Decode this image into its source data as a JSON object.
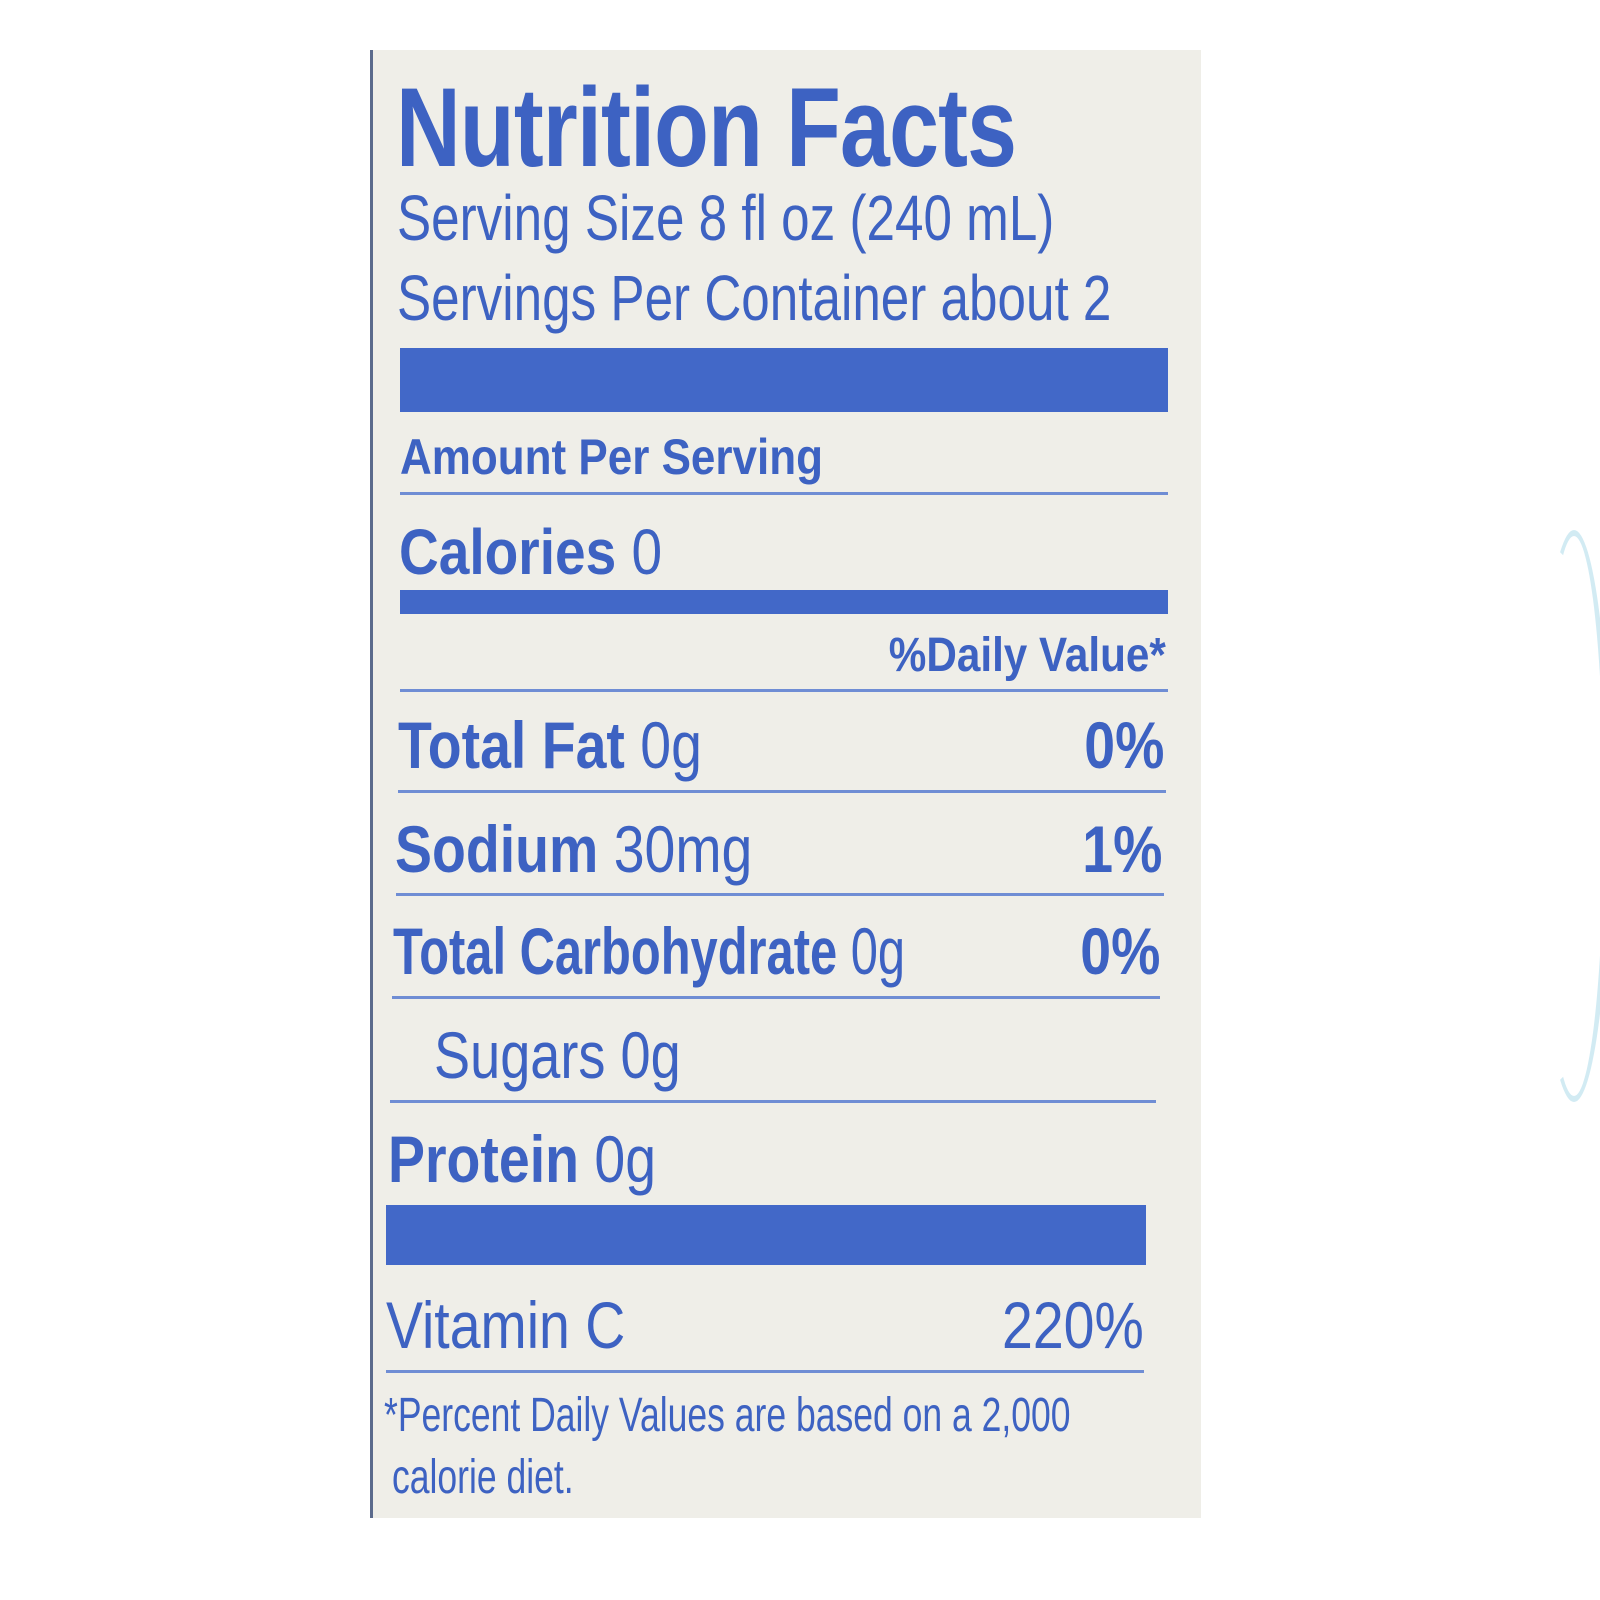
{
  "label": {
    "title": "Nutrition Facts",
    "serving_size": "Serving Size 8 fl oz (240 mL)",
    "servings_per_container": "Servings Per Container about 2",
    "amount_per_serving": "Amount Per Serving",
    "calories": {
      "label": "Calories",
      "value": "0"
    },
    "daily_value_header": "%Daily Value*",
    "nutrients": [
      {
        "name": "Total Fat",
        "amount": "0g",
        "dv": "0%"
      },
      {
        "name": "Sodium",
        "amount": "30mg",
        "dv": "1%"
      },
      {
        "name": "Total Carbohydrate",
        "amount": "0g",
        "dv": "0%"
      },
      {
        "name": "Sugars",
        "amount": "0g"
      },
      {
        "name": "Protein",
        "amount": "0g"
      }
    ],
    "vitamins": [
      {
        "name": "Vitamin C",
        "dv": "220%"
      }
    ],
    "footnote_line1": "*Percent Daily Values are based on a 2,000",
    "footnote_line2": "calorie diet.",
    "ink_color": "#3d62c2",
    "paper_color": "#efeee8"
  }
}
